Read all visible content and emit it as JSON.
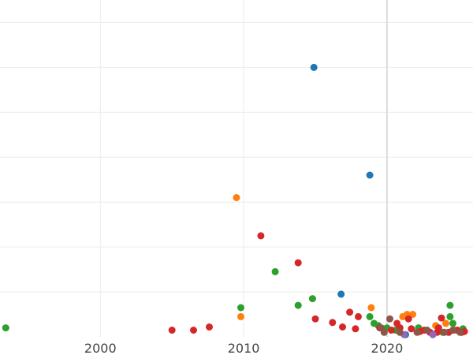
{
  "chart_data": {
    "type": "scatter",
    "title": "",
    "xlabel": "",
    "ylabel": "",
    "xlim": [
      1993,
      2026
    ],
    "ylim": [
      0,
      7.5
    ],
    "grid": true,
    "x_ticks": [
      2000,
      2010,
      2020
    ],
    "x_tick_labels": [
      "2000",
      "2010",
      "2020"
    ],
    "highlight_x": 2020,
    "colors": {
      "blue": "#1f77b4",
      "orange": "#ff7f0e",
      "green": "#2ca02c",
      "red": "#d62728",
      "purple": "#9467bd",
      "brown": "#8c564b"
    },
    "series": [
      {
        "name": "blue",
        "color": "#1f77b4",
        "points": [
          [
            2014.9,
            6.0
          ],
          [
            2018.8,
            3.6
          ],
          [
            2016.8,
            0.95
          ],
          [
            2021.3,
            0.05
          ]
        ]
      },
      {
        "name": "orange",
        "color": "#ff7f0e",
        "points": [
          [
            2009.5,
            3.1
          ],
          [
            2009.8,
            0.45
          ],
          [
            2018.9,
            0.65
          ],
          [
            2021.1,
            0.45
          ],
          [
            2021.4,
            0.5
          ],
          [
            2021.8,
            0.5
          ],
          [
            2023.4,
            0.25
          ],
          [
            2024.1,
            0.3
          ],
          [
            2024.7,
            0.15
          ]
        ]
      },
      {
        "name": "green",
        "color": "#2ca02c",
        "points": [
          [
            1993.4,
            0.2
          ],
          [
            2009.8,
            0.65
          ],
          [
            2012.2,
            1.45
          ],
          [
            2013.8,
            0.7
          ],
          [
            2014.8,
            0.85
          ],
          [
            2018.8,
            0.45
          ],
          [
            2019.1,
            0.3
          ],
          [
            2019.4,
            0.25
          ],
          [
            2020.0,
            0.2
          ],
          [
            2020.6,
            0.15
          ],
          [
            2022.2,
            0.2
          ],
          [
            2023.9,
            0.1
          ],
          [
            2024.4,
            0.7
          ],
          [
            2024.4,
            0.45
          ],
          [
            2024.6,
            0.3
          ],
          [
            2025.3,
            0.18
          ]
        ]
      },
      {
        "name": "red",
        "color": "#d62728",
        "points": [
          [
            2005.0,
            0.15
          ],
          [
            2006.5,
            0.15
          ],
          [
            2007.6,
            0.22
          ],
          [
            2011.2,
            2.25
          ],
          [
            2013.8,
            1.65
          ],
          [
            2015.0,
            0.4
          ],
          [
            2016.2,
            0.32
          ],
          [
            2016.9,
            0.22
          ],
          [
            2017.4,
            0.55
          ],
          [
            2017.8,
            0.18
          ],
          [
            2018.0,
            0.45
          ],
          [
            2019.5,
            0.2
          ],
          [
            2020.3,
            0.15
          ],
          [
            2020.7,
            0.3
          ],
          [
            2020.9,
            0.2
          ],
          [
            2021.5,
            0.4
          ],
          [
            2021.7,
            0.18
          ],
          [
            2022.3,
            0.12
          ],
          [
            2022.6,
            0.15
          ],
          [
            2023.0,
            0.1
          ],
          [
            2023.5,
            0.1
          ],
          [
            2023.6,
            0.2
          ],
          [
            2023.8,
            0.42
          ],
          [
            2024.3,
            0.1
          ],
          [
            2024.9,
            0.15
          ],
          [
            2025.2,
            0.1
          ],
          [
            2025.4,
            0.12
          ]
        ]
      },
      {
        "name": "purple",
        "color": "#9467bd",
        "points": [
          [
            2021.2,
            0.05
          ],
          [
            2023.2,
            0.05
          ]
        ]
      },
      {
        "name": "brown",
        "color": "#8c564b",
        "points": [
          [
            2019.6,
            0.2
          ],
          [
            2019.8,
            0.1
          ],
          [
            2020.2,
            0.4
          ],
          [
            2020.9,
            0.1
          ],
          [
            2022.1,
            0.1
          ],
          [
            2022.8,
            0.15
          ],
          [
            2024.0,
            0.1
          ],
          [
            2024.6,
            0.15
          ],
          [
            2025.1,
            0.1
          ]
        ]
      }
    ]
  }
}
